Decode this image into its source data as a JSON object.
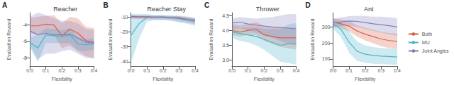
{
  "chart_data": [
    {
      "type": "line",
      "title": "Reacher",
      "annotations": [
        "A"
      ],
      "xlabel": "Flexibility",
      "ylabel": "Evaluation Reward",
      "x": [
        0.0,
        0.05,
        0.1,
        0.15,
        0.2,
        0.25,
        0.3,
        0.35,
        0.4
      ],
      "xlim": [
        0.0,
        0.4
      ],
      "xticks": [
        {
          "value": 0.0,
          "label": "0.0"
        },
        0.1,
        0.2,
        0.3,
        0.4
      ],
      "ylim": [
        -9.0,
        -2.5
      ],
      "yticks": [
        -8,
        -6,
        -4
      ],
      "grid": false,
      "series": [
        {
          "name": "Both",
          "color": "#d9604a",
          "values": [
            -4.1,
            -4.1,
            -3.9,
            -4.0,
            -5.3,
            -4.5,
            -5.0,
            -5.9,
            -6.1
          ],
          "lo": [
            -5.0,
            -5.2,
            -5.0,
            -5.2,
            -6.8,
            -6.5,
            -7.2,
            -7.8,
            -8.0
          ],
          "hi": [
            -3.2,
            -3.0,
            -2.9,
            -2.8,
            -3.8,
            -3.0,
            -3.2,
            -4.2,
            -4.4
          ]
        },
        {
          "name": "MU",
          "color": "#4db3c8",
          "values": [
            -6.1,
            -6.8,
            -5.2,
            -5.3,
            -5.4,
            -5.2,
            -6.3,
            -6.4,
            -6.3
          ],
          "lo": [
            -6.7,
            -8.5,
            -6.2,
            -6.2,
            -6.2,
            -6.2,
            -7.1,
            -7.2,
            -7.0
          ],
          "hi": [
            -5.5,
            -5.2,
            -4.4,
            -4.5,
            -4.6,
            -4.4,
            -5.5,
            -5.7,
            -5.6
          ]
        },
        {
          "name": "Joint Angles",
          "color": "#8080c0",
          "values": [
            -4.7,
            -5.2,
            -5.0,
            -5.2,
            -5.2,
            -5.1,
            -5.6,
            -6.1,
            -6.2
          ],
          "lo": [
            -6.5,
            -8.2,
            -7.5,
            -7.5,
            -7.2,
            -7.0,
            -7.5,
            -8.0,
            -8.1
          ],
          "hi": [
            -3.0,
            -2.5,
            -2.8,
            -3.2,
            -3.5,
            -3.5,
            -3.8,
            -4.5,
            -4.6
          ]
        }
      ]
    },
    {
      "type": "line",
      "title": "Reacher Stay",
      "annotations": [
        "B"
      ],
      "xlabel": "Flexibility",
      "ylabel": "Evaluation Reward",
      "x": [
        0.0,
        0.05,
        0.1,
        0.15,
        0.2,
        0.25,
        0.3,
        0.35,
        0.4
      ],
      "xlim": [
        0.0,
        0.4
      ],
      "xticks": [
        {
          "value": 0.0,
          "label": "0.0"
        },
        0.1,
        0.2,
        0.3,
        0.4
      ],
      "ylim": [
        -43,
        -7
      ],
      "yticks": [
        -40,
        -30,
        -20,
        -10
      ],
      "grid": false,
      "series": [
        {
          "name": "Both",
          "color": "#d9604a",
          "values": [
            -9.5,
            -9.8,
            -9.8,
            -10.0,
            -10.0,
            -10.3,
            -10.5,
            -11.5,
            -12.2
          ],
          "lo": [
            -10.2,
            -10.5,
            -10.6,
            -10.8,
            -10.8,
            -11.2,
            -11.5,
            -12.8,
            -13.8
          ],
          "hi": [
            -8.8,
            -9.0,
            -9.0,
            -9.2,
            -9.2,
            -9.5,
            -9.5,
            -10.2,
            -10.8
          ]
        },
        {
          "name": "MU",
          "color": "#4db3c8",
          "values": [
            -22.5,
            -14.5,
            -10.2,
            -10.0,
            -10.0,
            -10.3,
            -10.8,
            -11.5,
            -12.5
          ],
          "lo": [
            -41.0,
            -25.0,
            -13.0,
            -12.0,
            -12.0,
            -12.5,
            -13.5,
            -14.5,
            -16.0
          ],
          "hi": [
            -8.0,
            -8.0,
            -8.0,
            -8.5,
            -8.5,
            -8.8,
            -9.0,
            -9.5,
            -10.5
          ]
        },
        {
          "name": "Joint Angles",
          "color": "#8080c0",
          "values": [
            -9.8,
            -10.0,
            -10.0,
            -10.2,
            -10.0,
            -10.3,
            -11.0,
            -11.8,
            -12.5
          ],
          "lo": [
            -11.0,
            -11.5,
            -11.5,
            -11.8,
            -11.8,
            -12.0,
            -13.0,
            -13.8,
            -14.8
          ],
          "hi": [
            -8.8,
            -9.0,
            -9.0,
            -9.0,
            -9.0,
            -9.2,
            -9.5,
            -10.2,
            -11.0
          ]
        }
      ]
    },
    {
      "type": "line",
      "title": "Thrower",
      "annotations": [
        "C"
      ],
      "xlabel": "Flexibility",
      "ylabel": "Evaluation Reward",
      "x": [
        0.0,
        0.05,
        0.1,
        0.15,
        0.2,
        0.25,
        0.3,
        0.35,
        0.4
      ],
      "xlim": [
        0.0,
        0.4
      ],
      "xticks": [
        {
          "value": 0.0,
          "label": "0.0"
        },
        0.1,
        0.2,
        0.3,
        0.4
      ],
      "ylim": [
        2.8,
        4.6
      ],
      "yticks": [
        {
          "value": 3,
          "label": "3.0"
        },
        3.5,
        {
          "value": 4,
          "label": "4.0"
        },
        4.5
      ],
      "grid": false,
      "series": [
        {
          "name": "Both",
          "color": "#d9604a",
          "values": [
            4.0,
            3.95,
            4.0,
            4.05,
            3.85,
            3.8,
            3.75,
            3.75,
            3.75
          ],
          "lo": [
            3.85,
            3.8,
            3.85,
            3.85,
            3.65,
            3.55,
            3.45,
            3.4,
            3.35
          ],
          "hi": [
            4.22,
            4.18,
            4.22,
            4.28,
            4.15,
            4.12,
            4.1,
            4.1,
            4.1
          ]
        },
        {
          "name": "MU",
          "color": "#4db3c8",
          "values": [
            3.95,
            3.9,
            3.85,
            3.8,
            3.7,
            3.6,
            3.5,
            3.55,
            3.55
          ],
          "lo": [
            3.75,
            3.65,
            3.6,
            3.5,
            3.35,
            3.15,
            2.95,
            2.9,
            2.85
          ],
          "hi": [
            4.15,
            4.1,
            4.1,
            4.1,
            4.05,
            4.05,
            4.05,
            4.2,
            4.25
          ]
        },
        {
          "name": "Joint Angles",
          "color": "#8080c0",
          "values": [
            4.25,
            4.28,
            4.22,
            4.18,
            4.15,
            4.12,
            4.1,
            4.08,
            4.05
          ],
          "lo": [
            4.05,
            4.08,
            4.0,
            3.92,
            3.85,
            3.75,
            3.65,
            3.55,
            3.5
          ],
          "hi": [
            4.4,
            4.45,
            4.42,
            4.4,
            4.42,
            4.45,
            4.5,
            4.55,
            4.55
          ]
        }
      ]
    },
    {
      "type": "line",
      "title": "Ant",
      "annotations": [
        "D"
      ],
      "xlabel": "Flexibility",
      "ylabel": "Evaluation Reward",
      "x": [
        0.0,
        0.05,
        0.1,
        0.15,
        0.2,
        0.25,
        0.3,
        0.35,
        0.4
      ],
      "xlim": [
        0.0,
        0.4
      ],
      "xticks": [
        {
          "value": 0.0,
          "label": "0.0"
        },
        0.1,
        0.2,
        0.3,
        0.4
      ],
      "ylim": [
        55,
        390
      ],
      "yticks": [
        100,
        200,
        300
      ],
      "grid": false,
      "legend": "right",
      "series": [
        {
          "name": "Both",
          "color": "#d9604a",
          "values": [
            330.0,
            320.0,
            305.0,
            275.0,
            255.0,
            240.0,
            225.0,
            215.0,
            210.0
          ],
          "lo": [
            305.0,
            292.0,
            272.0,
            240.0,
            215.0,
            198.0,
            180.0,
            168.0,
            162.0
          ],
          "hi": [
            355.0,
            348.0,
            338.0,
            310.0,
            295.0,
            282.0,
            270.0,
            262.0,
            258.0
          ]
        },
        {
          "name": "MU",
          "color": "#4db3c8",
          "values": [
            320.0,
            285.0,
            205.0,
            148.0,
            130.0,
            122.0,
            118.0,
            115.0,
            112.0
          ],
          "lo": [
            288.0,
            238.0,
            138.0,
            88.0,
            75.0,
            70.0,
            68.0,
            65.0,
            62.0
          ],
          "hi": [
            352.0,
            332.0,
            272.0,
            208.0,
            185.0,
            174.0,
            168.0,
            165.0,
            162.0
          ]
        },
        {
          "name": "Joint Angles",
          "color": "#8080c0",
          "values": [
            325.0,
            332.0,
            338.0,
            335.0,
            328.0,
            320.0,
            315.0,
            308.0,
            300.0
          ],
          "lo": [
            298.0,
            305.0,
            308.0,
            300.0,
            288.0,
            275.0,
            265.0,
            255.0,
            245.0
          ],
          "hi": [
            352.0,
            360.0,
            368.0,
            370.0,
            368.0,
            365.0,
            365.0,
            361.0,
            355.0
          ]
        }
      ]
    }
  ]
}
